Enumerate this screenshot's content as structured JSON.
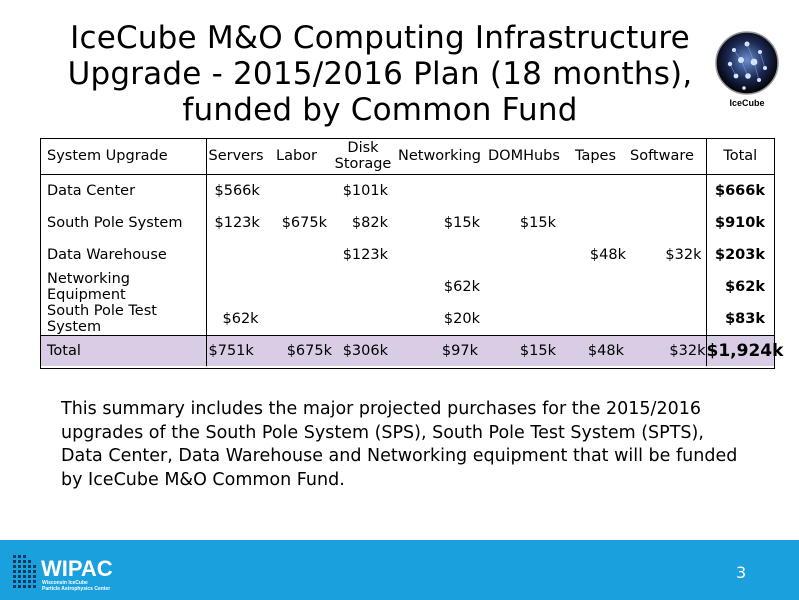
{
  "slide": {
    "title_lines": [
      "IceCube M&O Computing Infrastructure",
      "Upgrade - 2015/2016 Plan (18 months),",
      "funded by Common Fund"
    ],
    "logo_text": "IceCube",
    "page_number": "3",
    "footer_logo": {
      "name": "WIPAC",
      "tagline_lines": [
        "Wisconsin IceCube",
        "Particle Astrophysics Center"
      ]
    }
  },
  "table": {
    "headers": [
      "System Upgrade",
      "Servers",
      "Labor",
      "Disk Storage",
      "Networking",
      "DOMHubs",
      "Tapes",
      "Software",
      "Total"
    ],
    "rows": [
      {
        "label": "Data Center",
        "cells": [
          "$566k",
          "",
          "$101k",
          "",
          "",
          "",
          "",
          "$666k"
        ]
      },
      {
        "label": "South Pole System",
        "cells": [
          "$123k",
          "$675k",
          "$82k",
          "$15k",
          "$15k",
          "",
          "",
          "$910k"
        ]
      },
      {
        "label": "Data Warehouse",
        "cells": [
          "",
          "",
          "$123k",
          "",
          "",
          "$48k",
          "$32k",
          "$203k"
        ]
      },
      {
        "label": "Networking Equipment",
        "cells": [
          "",
          "",
          "",
          "$62k",
          "",
          "",
          "",
          "$62k"
        ]
      },
      {
        "label": "South Pole Test System",
        "cells": [
          "$62k",
          "",
          "",
          "$20k",
          "",
          "",
          "",
          "$83k"
        ]
      }
    ],
    "total_row": {
      "label": "Total",
      "cells": [
        "$751k",
        "$675k",
        "$306k",
        "$97k",
        "$15k",
        "$48k",
        "$32k",
        "$1,924k"
      ]
    }
  },
  "summary": "This summary includes the major projected purchases for the 2015/2016 upgrades of the South Pole System (SPS), South Pole Test System (SPTS), Data Center, Data Warehouse and Networking equipment that will be funded by IceCube M&O Common Fund.",
  "colors": {
    "footer_bar": "#1aa0dc",
    "total_row_bg": "#d8cde4"
  }
}
